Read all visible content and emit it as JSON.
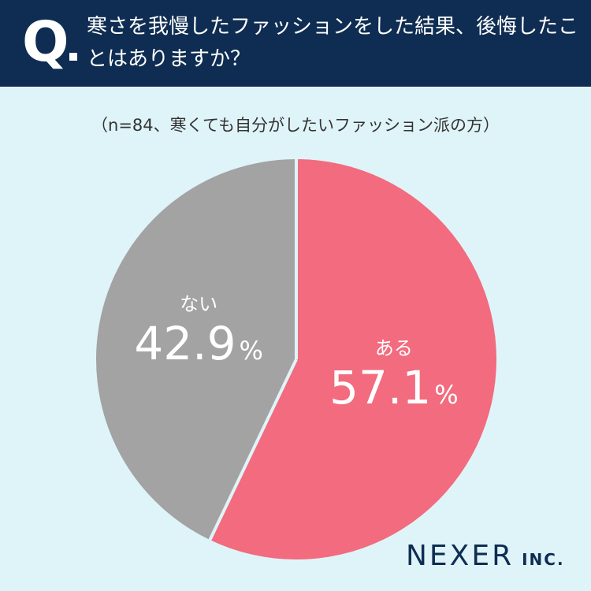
{
  "header": {
    "q_mark": "Q",
    "question": "寒さを我慢したファッションをした結果、後悔したことはありますか？"
  },
  "sample_note": "（n=84、寒くても自分がしたいファッション派の方）",
  "chart_data": {
    "type": "pie",
    "title": "寒さを我慢したファッションをした結果、後悔したことはありますか？",
    "subtitle": "（n=84、寒くても自分がしたいファッション派の方）",
    "categories": [
      "ある",
      "ない"
    ],
    "values": [
      57.1,
      42.9
    ],
    "labels": [
      "57.1",
      "42.9"
    ],
    "unit": "%",
    "colors": [
      "#f26b7e",
      "#a3a3a3"
    ],
    "start": "top, clockwise"
  },
  "brand": {
    "name": "NEXER",
    "suffix": "INC."
  },
  "colors": {
    "header_bg": "#0f2d52",
    "page_bg": "#dff4f8",
    "separator": "#dff4f8"
  }
}
